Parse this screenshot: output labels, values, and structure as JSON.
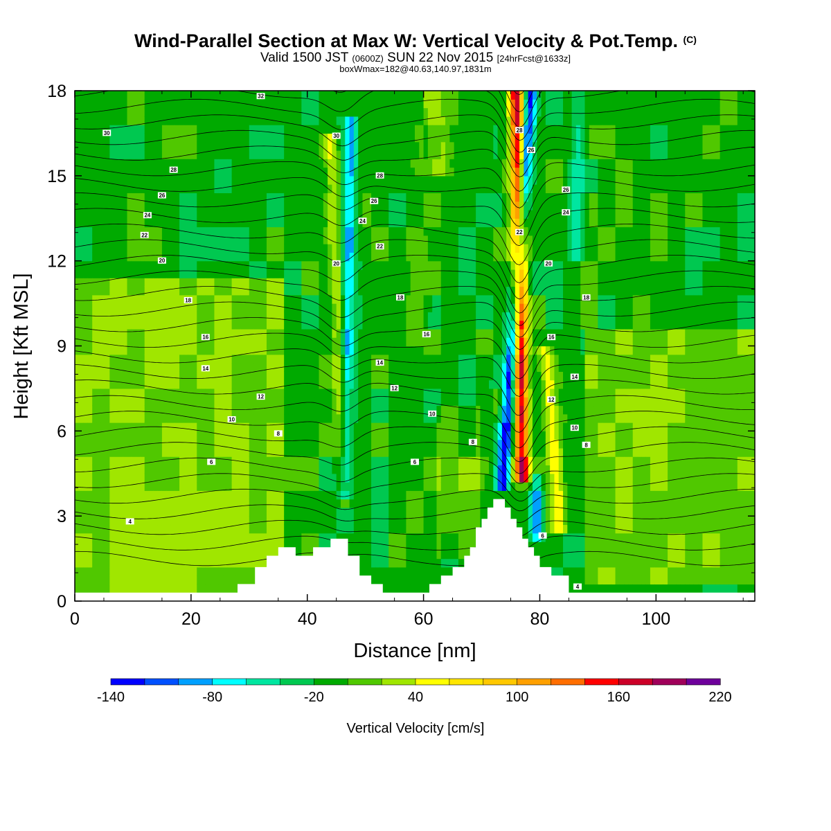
{
  "header": {
    "title_main": "Wind-Parallel Section at Max W: Vertical Velocity & Pot.Temp.",
    "title_copyright": "(C)",
    "valid_prefix": "Valid 1500 JST",
    "valid_utc": "(0600Z)",
    "valid_date": "SUN 22 Nov 2015",
    "forecast": "[24hrFcst@1633z]",
    "box_info": "boxWmax=182@40.63,140.97,1831m"
  },
  "chart_data": {
    "type": "heatmap",
    "xlabel": "Distance [nm]",
    "ylabel": "Height [Kft MSL]",
    "xlim": [
      0,
      117
    ],
    "ylim": [
      0,
      18
    ],
    "x_ticks": [
      0,
      20,
      40,
      60,
      80,
      100
    ],
    "y_ticks": [
      0,
      3,
      6,
      9,
      12,
      15,
      18
    ],
    "colorbar": {
      "title": "Vertical Velocity [cm/s]",
      "tick_labels": [
        "-140",
        "-80",
        "-20",
        "40",
        "100",
        "160",
        "220"
      ],
      "bins_start": -140,
      "bin_width": 20,
      "colors": [
        "#0000ff",
        "#0050ff",
        "#00a0ff",
        "#00ffff",
        "#00e6a0",
        "#00c850",
        "#00aa00",
        "#50c800",
        "#a0e600",
        "#ffff00",
        "#ffe600",
        "#ffc800",
        "#ffa000",
        "#ff6e00",
        "#ff0000",
        "#cc0028",
        "#a0005a",
        "#6e009b"
      ]
    },
    "background_w": -10,
    "updrafts": [
      {
        "x0": 76,
        "x1": 77,
        "y_top": 18,
        "y_bot": 4.2,
        "peak": 182,
        "sigma": 1.3
      },
      {
        "x0": 81,
        "x1": 83.5,
        "y_top": 9,
        "y_bot": 2.3,
        "peak": 55,
        "sigma": 1.4
      },
      {
        "x0": 44,
        "x1": 46.5,
        "y_top": 16.5,
        "y_bot": 3.2,
        "peak": 45,
        "sigma": 1.2
      },
      {
        "x0": 61.5,
        "x1": 63,
        "y_top": 18,
        "y_bot": 15,
        "peak": 35,
        "sigma": 2.0
      },
      {
        "x0": 59.5,
        "x1": 58.5,
        "y_top": 13,
        "y_bot": 9,
        "peak": 10,
        "sigma": 2.0
      }
    ],
    "downdrafts": [
      {
        "x0": 78.5,
        "x1": 73.5,
        "y_top": 18,
        "y_bot": 4.0,
        "peak": -120,
        "sigma": 1.1
      },
      {
        "x0": 47.5,
        "x1": 46.5,
        "y_top": 17,
        "y_bot": 3.5,
        "peak": -75,
        "sigma": 1.1
      },
      {
        "x0": 79.5,
        "x1": 79.5,
        "y_top": 4.5,
        "y_bot": 2.0,
        "peak": -70,
        "sigma": 1.0
      },
      {
        "x0": 86.5,
        "x1": 86.5,
        "y_top": 18,
        "y_bot": 12,
        "peak": -40,
        "sigma": 1.3
      }
    ],
    "positive_zones": [
      {
        "x0": 0,
        "x1": 36,
        "y_top": 11.5,
        "y_bot": 0.2,
        "value": 20
      },
      {
        "x0": 88,
        "x1": 117,
        "y_top": 9.5,
        "y_bot": 0.5,
        "value": 15
      },
      {
        "x0": 62,
        "x1": 70,
        "y_top": 7,
        "y_bot": 1.5,
        "value": 10
      }
    ],
    "terrain": {
      "x": [
        0,
        28,
        28,
        31,
        31,
        33,
        33,
        35,
        35,
        38,
        38,
        41,
        41,
        44,
        44,
        47,
        47,
        49,
        49,
        51,
        51,
        53,
        53,
        61,
        61,
        63,
        63,
        65,
        65,
        67,
        67,
        68,
        68,
        69,
        69,
        70,
        70,
        71,
        71,
        72,
        72,
        74,
        74,
        75,
        75,
        76,
        76,
        77,
        77,
        78,
        78,
        79,
        79,
        80,
        80,
        82,
        82,
        85,
        85,
        117
      ],
      "y": [
        0.3,
        0.3,
        0.6,
        0.6,
        1.2,
        1.2,
        1.6,
        1.6,
        1.9,
        1.9,
        1.6,
        1.6,
        1.9,
        1.9,
        2.2,
        2.2,
        1.6,
        1.6,
        0.9,
        0.9,
        0.6,
        0.6,
        0.3,
        0.3,
        0.6,
        0.6,
        0.9,
        0.9,
        1.2,
        1.2,
        1.6,
        1.6,
        1.9,
        1.9,
        2.6,
        2.6,
        2.9,
        2.9,
        3.3,
        3.3,
        3.6,
        3.6,
        3.3,
        3.3,
        2.9,
        2.9,
        2.6,
        2.6,
        2.2,
        2.2,
        1.9,
        1.9,
        1.6,
        1.6,
        1.2,
        1.2,
        0.9,
        0.9,
        0.3,
        0.3
      ]
    },
    "contour_labels": [
      {
        "text": "32",
        "x": 32,
        "y": 17.8
      },
      {
        "text": "30",
        "x": 5.5,
        "y": 16.5
      },
      {
        "text": "30",
        "x": 45,
        "y": 16.4
      },
      {
        "text": "28",
        "x": 76.5,
        "y": 16.6
      },
      {
        "text": "28",
        "x": 17,
        "y": 15.2
      },
      {
        "text": "28",
        "x": 52.5,
        "y": 15.0
      },
      {
        "text": "26",
        "x": 78.5,
        "y": 15.9
      },
      {
        "text": "26",
        "x": 15,
        "y": 14.3
      },
      {
        "text": "26",
        "x": 51.5,
        "y": 14.1
      },
      {
        "text": "26",
        "x": 84.5,
        "y": 14.5
      },
      {
        "text": "24",
        "x": 12.5,
        "y": 13.6
      },
      {
        "text": "24",
        "x": 49.5,
        "y": 13.4
      },
      {
        "text": "24",
        "x": 84.5,
        "y": 13.7
      },
      {
        "text": "22",
        "x": 12,
        "y": 12.9
      },
      {
        "text": "22",
        "x": 76.5,
        "y": 13.0
      },
      {
        "text": "22",
        "x": 52.5,
        "y": 12.5
      },
      {
        "text": "20",
        "x": 15,
        "y": 12.0
      },
      {
        "text": "20",
        "x": 45,
        "y": 11.9
      },
      {
        "text": "20",
        "x": 81.5,
        "y": 11.9
      },
      {
        "text": "18",
        "x": 19.5,
        "y": 10.6
      },
      {
        "text": "18",
        "x": 56,
        "y": 10.7
      },
      {
        "text": "18",
        "x": 88,
        "y": 10.7
      },
      {
        "text": "16",
        "x": 22.5,
        "y": 9.3
      },
      {
        "text": "16",
        "x": 60.5,
        "y": 9.4
      },
      {
        "text": "16",
        "x": 82,
        "y": 9.3
      },
      {
        "text": "14",
        "x": 22.5,
        "y": 8.2
      },
      {
        "text": "14",
        "x": 52.5,
        "y": 8.4
      },
      {
        "text": "14",
        "x": 86,
        "y": 7.9
      },
      {
        "text": "12",
        "x": 32,
        "y": 7.2
      },
      {
        "text": "12",
        "x": 55,
        "y": 7.5
      },
      {
        "text": "12",
        "x": 82,
        "y": 7.1
      },
      {
        "text": "10",
        "x": 27,
        "y": 6.4
      },
      {
        "text": "10",
        "x": 61.5,
        "y": 6.6
      },
      {
        "text": "10",
        "x": 86,
        "y": 6.1
      },
      {
        "text": "8",
        "x": 35,
        "y": 5.9
      },
      {
        "text": "8",
        "x": 68.5,
        "y": 5.6
      },
      {
        "text": "8",
        "x": 88,
        "y": 5.5
      },
      {
        "text": "6",
        "x": 23.5,
        "y": 4.9
      },
      {
        "text": "6",
        "x": 58.5,
        "y": 4.9
      },
      {
        "text": "6",
        "x": 80.5,
        "y": 2.3
      },
      {
        "text": "4",
        "x": 9.5,
        "y": 2.8
      },
      {
        "text": "4",
        "x": 86.5,
        "y": 0.5
      }
    ]
  }
}
